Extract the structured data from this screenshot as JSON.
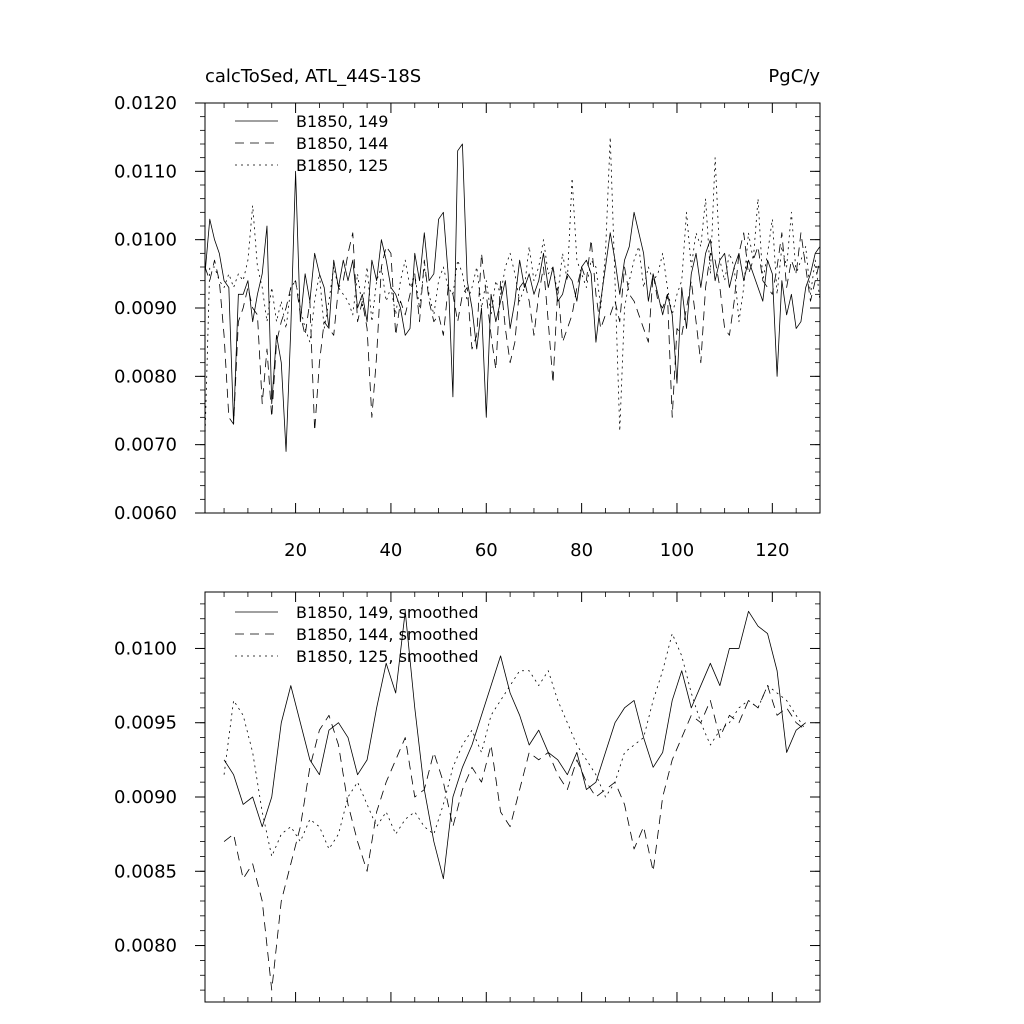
{
  "chart_data": [
    {
      "type": "line",
      "title_left": "calcToSed, ATL_44S-18S",
      "title_right": "PgC/y",
      "xlim": [
        1,
        130
      ],
      "ylim": [
        0.006,
        0.012
      ],
      "x_ticks": [
        20,
        40,
        60,
        80,
        100,
        120
      ],
      "x_tick_labels": [
        "20",
        "40",
        "60",
        "80",
        "100",
        "120"
      ],
      "y_ticks": [
        0.006,
        0.007,
        0.008,
        0.009,
        0.01,
        0.011,
        0.012
      ],
      "y_tick_labels": [
        "0.0060",
        "0.0070",
        "0.0080",
        "0.0090",
        "0.0100",
        "0.0110",
        "0.0120"
      ],
      "legend_position": "top-left",
      "series": [
        {
          "name": "B1850, 149",
          "style": "solid",
          "x_start": 1,
          "values": [
            0.0095,
            0.0103,
            0.01,
            0.0098,
            0.0094,
            0.0093,
            0.0073,
            0.0092,
            0.0092,
            0.0094,
            0.0088,
            0.0092,
            0.0095,
            0.0102,
            0.0076,
            0.0086,
            0.0082,
            0.0069,
            0.0087,
            0.011,
            0.0088,
            0.0095,
            0.0091,
            0.0098,
            0.0095,
            0.0093,
            0.0087,
            0.0097,
            0.0093,
            0.0097,
            0.0094,
            0.0097,
            0.009,
            0.0092,
            0.0088,
            0.0097,
            0.0094,
            0.01,
            0.0097,
            0.0093,
            0.0092,
            0.009,
            0.0086,
            0.0087,
            0.0098,
            0.0094,
            0.0101,
            0.0094,
            0.0095,
            0.0103,
            0.0104,
            0.0095,
            0.0077,
            0.0113,
            0.0114,
            0.0094,
            0.009,
            0.0084,
            0.009,
            0.0074,
            0.0092,
            0.0088,
            0.0091,
            0.0094,
            0.0087,
            0.0091,
            0.0097,
            0.0093,
            0.0095,
            0.0092,
            0.0094,
            0.0098,
            0.0093,
            0.0096,
            0.0091,
            0.0092,
            0.0095,
            0.0094,
            0.0091,
            0.0096,
            0.0097,
            0.0095,
            0.0085,
            0.0091,
            0.0096,
            0.0101,
            0.0097,
            0.0092,
            0.0097,
            0.0099,
            0.0104,
            0.0101,
            0.0098,
            0.0091,
            0.0095,
            0.0092,
            0.0089,
            0.0092,
            0.0089,
            0.0079,
            0.0093,
            0.0087,
            0.0095,
            0.0098,
            0.0093,
            0.0098,
            0.01,
            0.0094,
            0.0097,
            0.0098,
            0.0093,
            0.0096,
            0.0098,
            0.0094,
            0.0097,
            0.0095,
            0.0093,
            0.0091,
            0.0097,
            0.0095,
            0.008,
            0.0094,
            0.0089,
            0.0092,
            0.0087,
            0.0088,
            0.0093,
            0.0095,
            0.0098,
            0.0099
          ]
        },
        {
          "name": "B1850, 144",
          "style": "dashed",
          "x_start": 1,
          "values": [
            0.0096,
            0.0094,
            0.0097,
            0.0094,
            0.0086,
            0.0074,
            0.0073,
            0.0088,
            0.009,
            0.0093,
            0.009,
            0.0089,
            0.0076,
            0.0084,
            0.0074,
            0.0085,
            0.0088,
            0.009,
            0.0093,
            0.0094,
            0.0089,
            0.0086,
            0.0091,
            0.0072,
            0.0082,
            0.0088,
            0.0087,
            0.0086,
            0.0093,
            0.0094,
            0.0098,
            0.0101,
            0.0088,
            0.0091,
            0.0087,
            0.0074,
            0.0083,
            0.0096,
            0.0099,
            0.0098,
            0.0086,
            0.0091,
            0.0089,
            0.0092,
            0.0095,
            0.0088,
            0.0097,
            0.0091,
            0.0088,
            0.0089,
            0.0086,
            0.0093,
            0.0092,
            0.0088,
            0.0092,
            0.0093,
            0.0084,
            0.0086,
            0.0098,
            0.0092,
            0.0086,
            0.0081,
            0.0094,
            0.0087,
            0.0082,
            0.0085,
            0.0093,
            0.0094,
            0.0091,
            0.0086,
            0.0092,
            0.0096,
            0.0088,
            0.0079,
            0.0093,
            0.0085,
            0.0087,
            0.0089,
            0.0093,
            0.0096,
            0.0094,
            0.01,
            0.0092,
            0.0087,
            0.0089,
            0.0089,
            0.0091,
            0.0088,
            0.0096,
            0.0092,
            0.0091,
            0.0089,
            0.0087,
            0.0085,
            0.0095,
            0.0091,
            0.009,
            0.0092,
            0.0074,
            0.0087,
            0.0086,
            0.009,
            0.0094,
            0.0088,
            0.0082,
            0.0093,
            0.0098,
            0.0097,
            0.0093,
            0.0087,
            0.0086,
            0.0091,
            0.0098,
            0.0101,
            0.0095,
            0.0097,
            0.0099,
            0.0094,
            0.0093,
            0.0092,
            0.0096,
            0.0101,
            0.0093,
            0.0097,
            0.0095,
            0.0101,
            0.0096,
            0.0091,
            0.0094,
            0.0097
          ]
        },
        {
          "name": "B1850, 125",
          "style": "dotted",
          "x_start": 1,
          "values": [
            0.0071,
            0.0096,
            0.0096,
            0.0094,
            0.0093,
            0.0095,
            0.0093,
            0.0095,
            0.0094,
            0.0097,
            0.0105,
            0.0096,
            0.0093,
            0.0088,
            0.0093,
            0.0088,
            0.0091,
            0.0087,
            0.0093,
            0.0094,
            0.009,
            0.0087,
            0.0085,
            0.0091,
            0.0095,
            0.0087,
            0.0091,
            0.0096,
            0.0093,
            0.0092,
            0.0091,
            0.0089,
            0.0095,
            0.009,
            0.0096,
            0.0088,
            0.0094,
            0.0096,
            0.0091,
            0.0093,
            0.0089,
            0.0094,
            0.0097,
            0.0093,
            0.0095,
            0.009,
            0.0096,
            0.0092,
            0.0089,
            0.0094,
            0.0096,
            0.0093,
            0.0092,
            0.0097,
            0.0095,
            0.0091,
            0.0093,
            0.0096,
            0.009,
            0.0094,
            0.0089,
            0.0094,
            0.0092,
            0.0096,
            0.0098,
            0.0095,
            0.0091,
            0.0093,
            0.0099,
            0.0094,
            0.0096,
            0.01,
            0.0095,
            0.0096,
            0.0092,
            0.0098,
            0.0094,
            0.0109,
            0.0097,
            0.0095,
            0.0093,
            0.0097,
            0.0096,
            0.009,
            0.0098,
            0.0115,
            0.0094,
            0.0072,
            0.009,
            0.0094,
            0.0097,
            0.0099,
            0.0093,
            0.0096,
            0.0094,
            0.0095,
            0.0098,
            0.0093,
            0.0089,
            0.0092,
            0.0094,
            0.0104,
            0.0096,
            0.0101,
            0.0099,
            0.0106,
            0.0095,
            0.0112,
            0.0097,
            0.0094,
            0.0098,
            0.0096,
            0.0088,
            0.0093,
            0.0101,
            0.0097,
            0.0106,
            0.0094,
            0.0098,
            0.0103,
            0.0092,
            0.0099,
            0.0096,
            0.0104,
            0.0095,
            0.0097,
            0.0099,
            0.0092,
            0.0097,
            0.0091
          ]
        }
      ]
    },
    {
      "type": "line",
      "xlim": [
        1,
        130
      ],
      "ylim": [
        0.00762,
        0.01038
      ],
      "x_ticks": [
        20,
        40,
        60,
        80,
        100,
        120
      ],
      "x_tick_labels": [
        "",
        "",
        "",
        "",
        "",
        ""
      ],
      "y_ticks": [
        0.008,
        0.0085,
        0.009,
        0.0095,
        0.01
      ],
      "y_tick_labels": [
        "0.0080",
        "0.0085",
        "0.0090",
        "0.0095",
        "0.0100"
      ],
      "legend_position": "top-left",
      "series": [
        {
          "name": "B1850, 149, smoothed",
          "style": "solid",
          "x": [
            5,
            7,
            9,
            11,
            13,
            15,
            17,
            19,
            21,
            23,
            25,
            27,
            29,
            31,
            33,
            35,
            37,
            39,
            41,
            43,
            45,
            47,
            49,
            51,
            53,
            55,
            57,
            59,
            61,
            63,
            65,
            67,
            69,
            71,
            73,
            75,
            77,
            79,
            81,
            83,
            85,
            87,
            89,
            91,
            93,
            95,
            97,
            99,
            101,
            103,
            105,
            107,
            109,
            111,
            113,
            115,
            117,
            119,
            121,
            123,
            125,
            127
          ],
          "values": [
            0.00925,
            0.00915,
            0.00895,
            0.009,
            0.0088,
            0.009,
            0.0095,
            0.00975,
            0.0095,
            0.00925,
            0.00915,
            0.00945,
            0.0095,
            0.0094,
            0.00915,
            0.00925,
            0.0096,
            0.0099,
            0.0097,
            0.01025,
            0.0096,
            0.00905,
            0.0087,
            0.00845,
            0.009,
            0.0092,
            0.00935,
            0.00955,
            0.00975,
            0.00995,
            0.0097,
            0.00955,
            0.00935,
            0.00945,
            0.0093,
            0.00925,
            0.00915,
            0.0093,
            0.00905,
            0.0091,
            0.0093,
            0.0095,
            0.0096,
            0.00965,
            0.0094,
            0.0092,
            0.0093,
            0.00965,
            0.00985,
            0.0096,
            0.00975,
            0.0099,
            0.00975,
            0.01,
            0.01,
            0.01025,
            0.01015,
            0.0101,
            0.00985,
            0.0093,
            0.00945,
            0.0095
          ]
        },
        {
          "name": "B1850, 144, smoothed",
          "style": "dashed",
          "x": [
            5,
            7,
            9,
            11,
            13,
            15,
            17,
            19,
            21,
            23,
            25,
            27,
            29,
            31,
            33,
            35,
            37,
            39,
            41,
            43,
            45,
            47,
            49,
            51,
            53,
            55,
            57,
            59,
            61,
            63,
            65,
            67,
            69,
            71,
            73,
            75,
            77,
            79,
            81,
            83,
            85,
            87,
            89,
            91,
            93,
            95,
            97,
            99,
            101,
            103,
            105,
            107,
            109,
            111,
            113,
            115,
            117,
            119,
            121,
            123,
            125,
            127
          ],
          "values": [
            0.0087,
            0.00875,
            0.00845,
            0.00855,
            0.0083,
            0.0077,
            0.0083,
            0.00855,
            0.0088,
            0.0092,
            0.00945,
            0.00955,
            0.00935,
            0.00895,
            0.0087,
            0.0085,
            0.0089,
            0.0091,
            0.00925,
            0.0094,
            0.009,
            0.00905,
            0.0093,
            0.0091,
            0.0088,
            0.00905,
            0.0092,
            0.0091,
            0.00935,
            0.0089,
            0.0088,
            0.00905,
            0.0093,
            0.00925,
            0.0093,
            0.00915,
            0.00905,
            0.00925,
            0.0091,
            0.009,
            0.00905,
            0.0091,
            0.00895,
            0.00865,
            0.0088,
            0.0085,
            0.009,
            0.00925,
            0.0094,
            0.00955,
            0.0095,
            0.00965,
            0.0094,
            0.00955,
            0.0095,
            0.00965,
            0.0096,
            0.00975,
            0.00955,
            0.0096,
            0.0095,
            0.00945
          ]
        },
        {
          "name": "B1850, 125, smoothed",
          "style": "dotted",
          "x": [
            5,
            7,
            9,
            11,
            13,
            15,
            17,
            19,
            21,
            23,
            25,
            27,
            29,
            31,
            33,
            35,
            37,
            39,
            41,
            43,
            45,
            47,
            49,
            51,
            53,
            55,
            57,
            59,
            61,
            63,
            65,
            67,
            69,
            71,
            73,
            75,
            77,
            79,
            81,
            83,
            85,
            87,
            89,
            91,
            93,
            95,
            97,
            99,
            101,
            103,
            105,
            107,
            109,
            111,
            113,
            115,
            117,
            119,
            121,
            123,
            125,
            127
          ],
          "values": [
            0.00915,
            0.00965,
            0.00955,
            0.0093,
            0.0089,
            0.0086,
            0.00875,
            0.0088,
            0.0087,
            0.00885,
            0.0088,
            0.00865,
            0.00875,
            0.009,
            0.0091,
            0.00895,
            0.0088,
            0.0089,
            0.00875,
            0.00885,
            0.0089,
            0.0088,
            0.00875,
            0.00895,
            0.0092,
            0.00935,
            0.00945,
            0.0093,
            0.00955,
            0.00965,
            0.00975,
            0.00985,
            0.00985,
            0.00975,
            0.00985,
            0.00965,
            0.0095,
            0.00935,
            0.00925,
            0.00915,
            0.009,
            0.0091,
            0.0093,
            0.00935,
            0.0094,
            0.00965,
            0.00985,
            0.0101,
            0.00995,
            0.0097,
            0.0095,
            0.00935,
            0.00945,
            0.0095,
            0.0096,
            0.00965,
            0.0096,
            0.00975,
            0.0097,
            0.00965,
            0.00955,
            0.00945
          ]
        }
      ]
    }
  ]
}
